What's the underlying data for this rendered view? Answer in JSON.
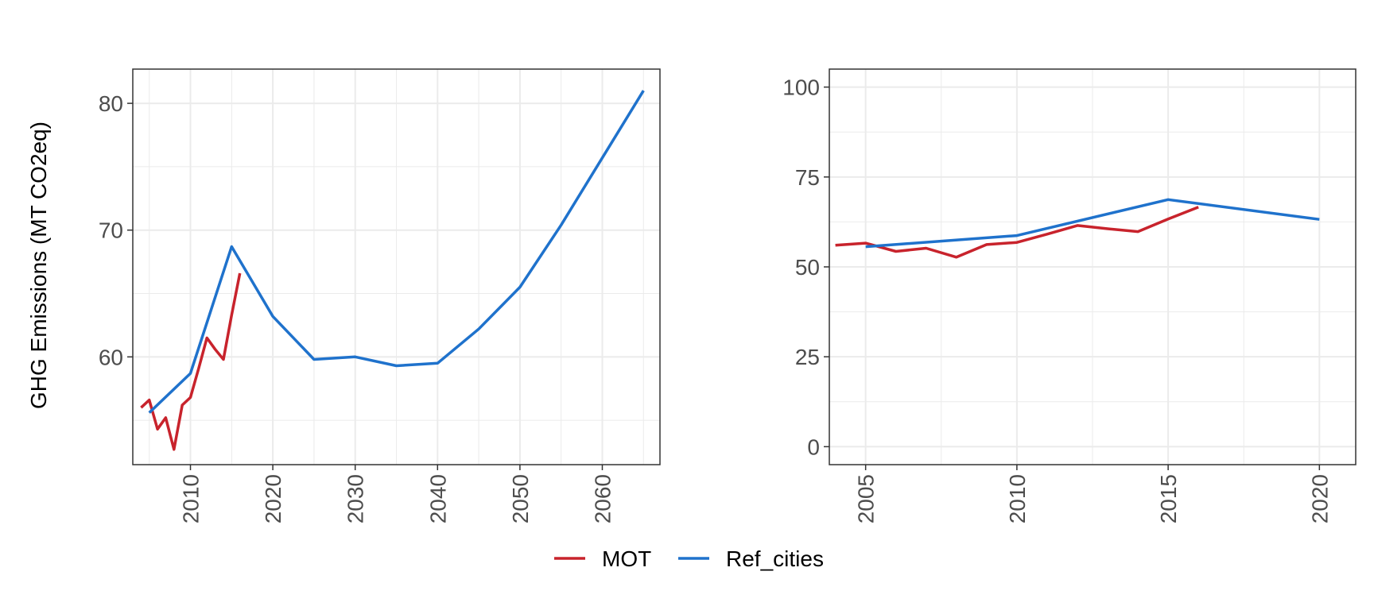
{
  "colors": {
    "MOT": "#c8232c",
    "Ref_cities": "#1f72cc",
    "grid": "#ebebeb",
    "panel_border": "#333333",
    "tick_text": "#4d4d4d"
  },
  "legend": {
    "placement": "bottom",
    "entries": [
      "MOT",
      "Ref_cities"
    ]
  },
  "chart_data": [
    {
      "type": "line",
      "title": "",
      "xlabel": "",
      "ylabel": "GHG Emissions (MT CO2eq)",
      "xlim": [
        2003,
        2067
      ],
      "ylim": [
        51.5,
        82.7
      ],
      "x_major_ticks": [
        2010,
        2020,
        2030,
        2040,
        2050,
        2060
      ],
      "x_minor_ticks": [
        2005,
        2015,
        2025,
        2035,
        2045,
        2055,
        2065
      ],
      "y_major_ticks": [
        60,
        70,
        80
      ],
      "y_minor_ticks": [
        55,
        65,
        75
      ],
      "x_tick_labels": [
        "2010",
        "2020",
        "2030",
        "2040",
        "2050",
        "2060"
      ],
      "y_tick_labels": [
        "60",
        "70",
        "80"
      ],
      "x_tick_rotation": -90,
      "grid": true,
      "series": [
        {
          "name": "MOT",
          "x": [
            2004,
            2005,
            2006,
            2007,
            2008,
            2009,
            2010,
            2011,
            2012,
            2013,
            2014,
            2015,
            2016
          ],
          "y": [
            56.0,
            56.6,
            54.3,
            55.2,
            52.7,
            56.2,
            56.8,
            59.1,
            61.5,
            60.6,
            59.8,
            63.3,
            66.6
          ]
        },
        {
          "name": "Ref_cities",
          "x": [
            2005,
            2010,
            2015,
            2020,
            2025,
            2030,
            2035,
            2040,
            2045,
            2050,
            2055,
            2060,
            2065
          ],
          "y": [
            55.6,
            58.7,
            68.7,
            63.2,
            59.8,
            60.0,
            59.3,
            59.5,
            62.2,
            65.5,
            70.4,
            75.7,
            81.0
          ]
        }
      ]
    },
    {
      "type": "line",
      "title": "",
      "xlabel": "",
      "ylabel": "",
      "xlim": [
        2003.8,
        2021.2
      ],
      "ylim": [
        -5,
        105
      ],
      "x_major_ticks": [
        2005,
        2010,
        2015,
        2020
      ],
      "x_minor_ticks": [
        2007.5,
        2012.5,
        2017.5
      ],
      "y_major_ticks": [
        0,
        25,
        50,
        75,
        100
      ],
      "y_minor_ticks": [
        12.5,
        37.5,
        62.5,
        87.5
      ],
      "x_tick_labels": [
        "2005",
        "2010",
        "2015",
        "2020"
      ],
      "y_tick_labels": [
        "0",
        "25",
        "50",
        "75",
        "100"
      ],
      "x_tick_rotation": -90,
      "grid": true,
      "series": [
        {
          "name": "MOT",
          "x": [
            2004,
            2005,
            2006,
            2007,
            2008,
            2009,
            2010,
            2011,
            2012,
            2013,
            2014,
            2015,
            2016
          ],
          "y": [
            56.0,
            56.6,
            54.3,
            55.2,
            52.7,
            56.2,
            56.8,
            59.1,
            61.5,
            60.6,
            59.8,
            63.3,
            66.6
          ]
        },
        {
          "name": "Ref_cities",
          "x": [
            2005,
            2010,
            2015,
            2020
          ],
          "y": [
            55.6,
            58.7,
            68.7,
            63.2
          ]
        }
      ]
    }
  ]
}
